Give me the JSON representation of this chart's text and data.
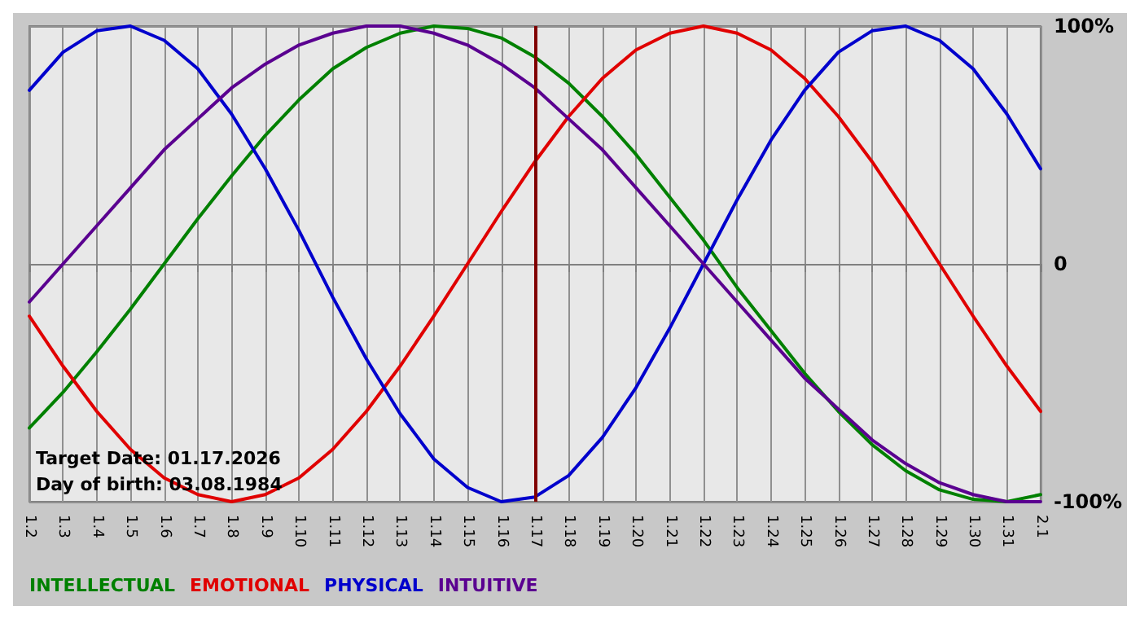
{
  "chart_data": {
    "type": "line",
    "categories": [
      "1.2",
      "1.3",
      "1.4",
      "1.5",
      "1.6",
      "1.7",
      "1.8",
      "1.9",
      "1.10",
      "1.11",
      "1.12",
      "1.13",
      "1.14",
      "1.15",
      "1.16",
      "1.17",
      "1.18",
      "1.19",
      "1.20",
      "1.21",
      "1.22",
      "1.23",
      "1.24",
      "1.25",
      "1.26",
      "1.27",
      "1.28",
      "1.29",
      "1.30",
      "1.31",
      "2.1"
    ],
    "series": [
      {
        "name": "INTELLECTUAL",
        "color": "#008000",
        "values": [
          -69,
          -54,
          -37,
          -19,
          0,
          19,
          37,
          54,
          69,
          82,
          91,
          97,
          100,
          99,
          95,
          87,
          76,
          62,
          46,
          28,
          10,
          -10,
          -28,
          -46,
          -62,
          -76,
          -87,
          -95,
          -99,
          -100,
          -97
        ]
      },
      {
        "name": "EMOTIONAL",
        "color": "#e00000",
        "values": [
          -22,
          -43,
          -62,
          -78,
          -90,
          -97,
          -100,
          -97,
          -90,
          -78,
          -62,
          -43,
          -22,
          0,
          22,
          43,
          62,
          78,
          90,
          97,
          100,
          97,
          90,
          78,
          62,
          43,
          22,
          0,
          -22,
          -43,
          -62
        ]
      },
      {
        "name": "PHYSICAL",
        "color": "#0000cc",
        "values": [
          73,
          89,
          98,
          100,
          94,
          82,
          63,
          40,
          14,
          -14,
          -40,
          -63,
          -82,
          -94,
          -100,
          -98,
          -89,
          -73,
          -52,
          -27,
          0,
          27,
          52,
          73,
          89,
          98,
          100,
          94,
          82,
          63,
          40
        ]
      },
      {
        "name": "INTUITIVE",
        "color": "#5a0090",
        "values": [
          -16,
          0,
          16,
          32,
          48,
          61,
          74,
          84,
          92,
          97,
          100,
          100,
          97,
          92,
          84,
          74,
          61,
          48,
          32,
          16,
          0,
          -16,
          -32,
          -48,
          -61,
          -74,
          -84,
          -92,
          -97,
          -100,
          -100
        ]
      }
    ],
    "ylim": [
      -100,
      100
    ],
    "yticks": [
      {
        "value": -100,
        "label": "-100%"
      },
      0,
      {
        "value": 100,
        "label": "100%"
      }
    ],
    "ref_lines": [
      {
        "axis": "x",
        "value": "1.17",
        "color": "#800000"
      }
    ],
    "annotations": [
      "Target Date: 01.17.2026",
      "Day of birth: 03.08.1984"
    ],
    "grid": true,
    "legend": "bottom left",
    "marker": "none",
    "line_style": "solid"
  }
}
